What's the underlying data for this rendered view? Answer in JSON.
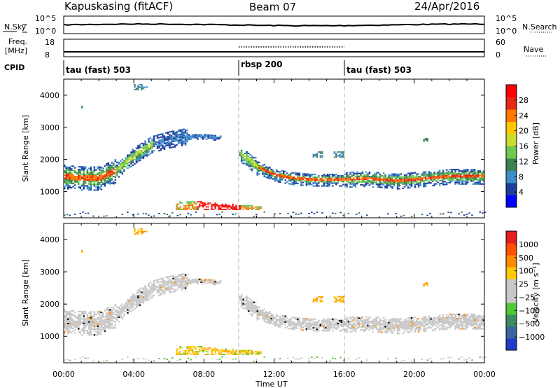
{
  "header": {
    "station": "Kapuskasing (fitACF)",
    "beam": "Beam 07",
    "date": "24/Apr/2016"
  },
  "sky_panel": {
    "left_label": "N.Sky",
    "left_ticks": [
      "10^5",
      "10^0"
    ],
    "right_label": "N.Search",
    "right_ticks": [
      "10^5",
      "10^0"
    ]
  },
  "freq_panel": {
    "label_line1": "Freq.",
    "label_line2": "[MHz]",
    "left_ticks": [
      "18",
      "8"
    ],
    "right_label": "Nave",
    "right_ticks": [
      "60",
      "0"
    ]
  },
  "cpid": {
    "label": "CPID",
    "segments": [
      {
        "name": "tau (fast) 503",
        "start_hr": 0
      },
      {
        "name": "rbsp 200",
        "start_hr": 10
      },
      {
        "name": "tau (fast) 503",
        "start_hr": 16
      }
    ]
  },
  "chart_data": [
    {
      "type": "heatmap",
      "panel": "power",
      "ylabel": "Slant Range [km]",
      "colorbar_label": "Power [dB]",
      "colorbar_ticks": [
        "28",
        "24",
        "20",
        "16",
        "12",
        "8",
        "4"
      ],
      "colors": [
        "#0000ff",
        "#1e3c9c",
        "#3c8cc8",
        "#3c8250",
        "#6ec850",
        "#c8dc32",
        "#ffc800",
        "#ff7800",
        "#e62814",
        "#ff0000"
      ],
      "xlim": [
        0,
        24
      ],
      "ylim": [
        180,
        4500
      ],
      "yticks": [
        "1000",
        "2000",
        "3000",
        "4000"
      ],
      "x_ticks": [
        "00:00",
        "04:00",
        "08:00",
        "12:00",
        "16:00",
        "20:00",
        "00:00"
      ],
      "band_range_km": [
        [
          0,
          1450
        ],
        [
          1,
          1400
        ],
        [
          2,
          1400
        ],
        [
          3,
          1650
        ],
        [
          4,
          2100
        ],
        [
          5,
          2450
        ],
        [
          6,
          2600
        ],
        [
          7,
          2700
        ],
        [
          8,
          2700
        ],
        [
          9,
          2650
        ],
        [
          10,
          2200
        ],
        [
          11,
          1750
        ],
        [
          12,
          1500
        ],
        [
          13,
          1400
        ],
        [
          14,
          1350
        ],
        [
          15,
          1350
        ],
        [
          16,
          1350
        ],
        [
          17,
          1380
        ],
        [
          18,
          1350
        ],
        [
          19,
          1300
        ],
        [
          20,
          1350
        ],
        [
          21,
          1400
        ],
        [
          22,
          1450
        ],
        [
          23,
          1450
        ],
        [
          24,
          1450
        ]
      ]
    },
    {
      "type": "heatmap",
      "panel": "velocity",
      "ylabel": "Slant Range [km]",
      "colorbar_label": "Velocity [m s⁻¹]",
      "colorbar_ticks": [
        "1000",
        "500",
        "100",
        "25",
        "−25",
        "−100",
        "−500",
        "−1000"
      ],
      "colors": [
        "#1e3cc8",
        "#3c64a0",
        "#3c8c64",
        "#50c832",
        "#c8c8c8",
        "#c8c8c8",
        "#ffc800",
        "#ff8c00",
        "#ff5000",
        "#e61e1e"
      ],
      "xlim": [
        0,
        24
      ],
      "ylim": [
        180,
        4500
      ],
      "yticks": [
        "1000",
        "2000",
        "3000",
        "4000"
      ],
      "x_ticks": [
        "00:00",
        "04:00",
        "08:00",
        "12:00",
        "16:00",
        "20:00",
        "00:00"
      ],
      "xlabel": "Time UT"
    }
  ]
}
